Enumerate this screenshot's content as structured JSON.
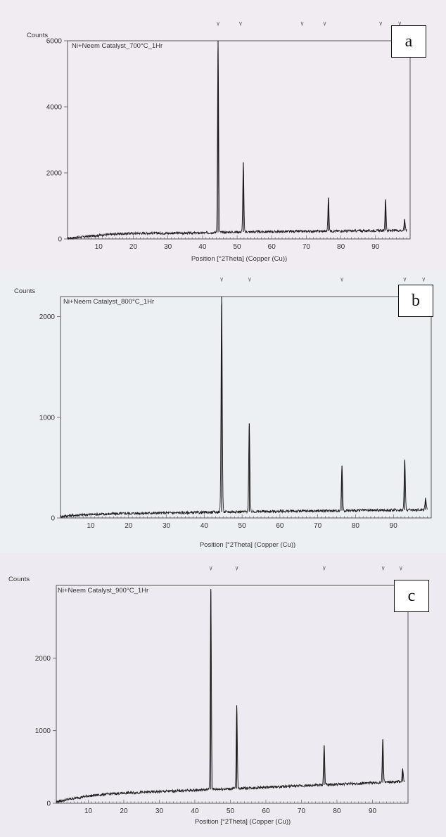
{
  "chart_data": [
    {
      "type": "line",
      "panel_label": "a",
      "title": "Ni+Neem Catalyst_700°C_1Hr",
      "ylabel": "Counts",
      "xlabel": "Position [°2Theta] (Copper (Cu))",
      "xlim": [
        1,
        100
      ],
      "ylim": [
        0,
        6000
      ],
      "xticks": [
        10,
        20,
        30,
        40,
        50,
        60,
        70,
        80,
        90
      ],
      "yticks": [
        0,
        2000,
        4000,
        6000
      ],
      "grid": false,
      "series": [
        {
          "x": [
            1,
            5,
            10,
            15,
            20,
            25,
            30,
            35,
            40,
            44.5,
            50,
            55,
            60,
            65,
            70,
            75,
            80,
            85,
            90,
            95,
            99
          ],
          "y": [
            20,
            60,
            110,
            150,
            170,
            175,
            175,
            178,
            180,
            200,
            210,
            215,
            220,
            225,
            230,
            235,
            240,
            245,
            250,
            255,
            260
          ]
        }
      ],
      "peaks": [
        {
          "x": 44.5,
          "y": 6000
        },
        {
          "x": 51.8,
          "y": 2300
        },
        {
          "x": 76.4,
          "y": 1250
        },
        {
          "x": 92.9,
          "y": 1200
        },
        {
          "x": 98.4,
          "y": 600
        }
      ],
      "reference_markers": [
        44.5,
        51.0,
        68.8,
        75.3,
        91.5,
        97.0
      ],
      "paper_color": "#f1ecf2"
    },
    {
      "type": "line",
      "panel_label": "b",
      "title": "Ni+Neem Catalyst_800°C_1Hr",
      "ylabel": "Counts",
      "xlabel": "Position [°2Theta] (Copper (Cu))",
      "xlim": [
        2,
        100
      ],
      "ylim": [
        0,
        2200
      ],
      "xticks": [
        10,
        20,
        30,
        40,
        50,
        60,
        70,
        80,
        90
      ],
      "yticks": [
        0,
        1000,
        2000
      ],
      "grid": false,
      "series": [
        {
          "x": [
            2,
            5,
            10,
            15,
            20,
            25,
            30,
            35,
            40,
            44.6,
            50,
            55,
            60,
            65,
            70,
            75,
            80,
            85,
            90,
            95,
            99
          ],
          "y": [
            15,
            25,
            35,
            40,
            45,
            48,
            50,
            52,
            55,
            60,
            62,
            64,
            66,
            68,
            70,
            72,
            74,
            76,
            78,
            80,
            82
          ]
        }
      ],
      "peaks": [
        {
          "x": 44.6,
          "y": 2200
        },
        {
          "x": 51.9,
          "y": 940
        },
        {
          "x": 76.4,
          "y": 520
        },
        {
          "x": 93.0,
          "y": 580
        },
        {
          "x": 98.5,
          "y": 200
        }
      ],
      "reference_markers": [
        44.6,
        52.0,
        76.4,
        93.0,
        98.0
      ],
      "paper_color": "#ecf0f2"
    },
    {
      "type": "line",
      "panel_label": "c",
      "title": "Ni+Neem Catalyst_900°C_1Hr",
      "ylabel": "Counts",
      "xlabel": "Position [°2Theta] (Copper (Cu))",
      "xlim": [
        1,
        100
      ],
      "ylim": [
        0,
        3000
      ],
      "xticks": [
        10,
        20,
        30,
        40,
        50,
        60,
        70,
        80,
        90
      ],
      "yticks": [
        0,
        1000,
        2000
      ],
      "grid": false,
      "series": [
        {
          "x": [
            1,
            5,
            10,
            15,
            20,
            25,
            30,
            35,
            40,
            44.5,
            50,
            55,
            60,
            65,
            70,
            75,
            80,
            85,
            90,
            95,
            99
          ],
          "y": [
            20,
            60,
            100,
            125,
            140,
            150,
            160,
            170,
            180,
            190,
            200,
            210,
            220,
            230,
            240,
            250,
            260,
            270,
            280,
            290,
            300
          ]
        }
      ],
      "peaks": [
        {
          "x": 44.5,
          "y": 2950
        },
        {
          "x": 51.8,
          "y": 1350
        },
        {
          "x": 76.4,
          "y": 800
        },
        {
          "x": 92.9,
          "y": 880
        },
        {
          "x": 98.5,
          "y": 480
        }
      ],
      "reference_markers": [
        44.5,
        51.8,
        76.4,
        93.0,
        98.0
      ],
      "paper_color": "#eeeaf1"
    }
  ]
}
